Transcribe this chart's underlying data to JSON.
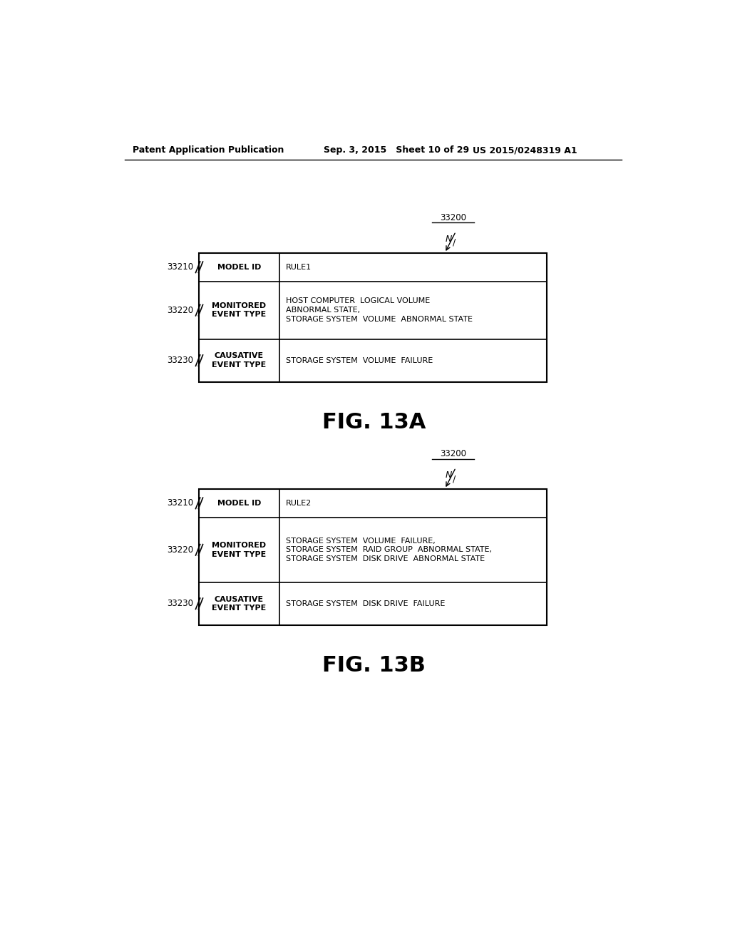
{
  "bg_color": "#ffffff",
  "header_left": "Patent Application Publication",
  "header_mid": "Sep. 3, 2015   Sheet 10 of 29",
  "header_right": "US 2015/0248319 A1",
  "fig_title_a": "FIG. 13A",
  "fig_title_b": "FIG. 13B",
  "diagram_a": {
    "label": "33200",
    "rows": [
      {
        "left_label": "33210",
        "col1": "MODEL ID",
        "col2": "RULE1",
        "col2_lines": 1
      },
      {
        "left_label": "33220",
        "col1": "MONITORED\nEVENT TYPE",
        "col2": "HOST COMPUTER  LOGICAL VOLUME\nABNORMAL STATE,\nSTORAGE SYSTEM  VOLUME  ABNORMAL STATE",
        "col2_lines": 3
      },
      {
        "left_label": "33230",
        "col1": "CAUSATIVE\nEVENT TYPE",
        "col2": "STORAGE SYSTEM  VOLUME  FAILURE",
        "col2_lines": 1
      }
    ]
  },
  "diagram_b": {
    "label": "33200",
    "rows": [
      {
        "left_label": "33210",
        "col1": "MODEL ID",
        "col2": "RULE2",
        "col2_lines": 1
      },
      {
        "left_label": "33220",
        "col1": "MONITORED\nEVENT TYPE",
        "col2": "STORAGE SYSTEM  VOLUME  FAILURE,\nSTORAGE SYSTEM  RAID GROUP  ABNORMAL STATE,\nSTORAGE SYSTEM  DISK DRIVE  ABNORMAL STATE",
        "col2_lines": 3
      },
      {
        "left_label": "33230",
        "col1": "CAUSATIVE\nEVENT TYPE",
        "col2": "STORAGE SYSTEM  DISK DRIVE  FAILURE",
        "col2_lines": 1
      }
    ]
  }
}
